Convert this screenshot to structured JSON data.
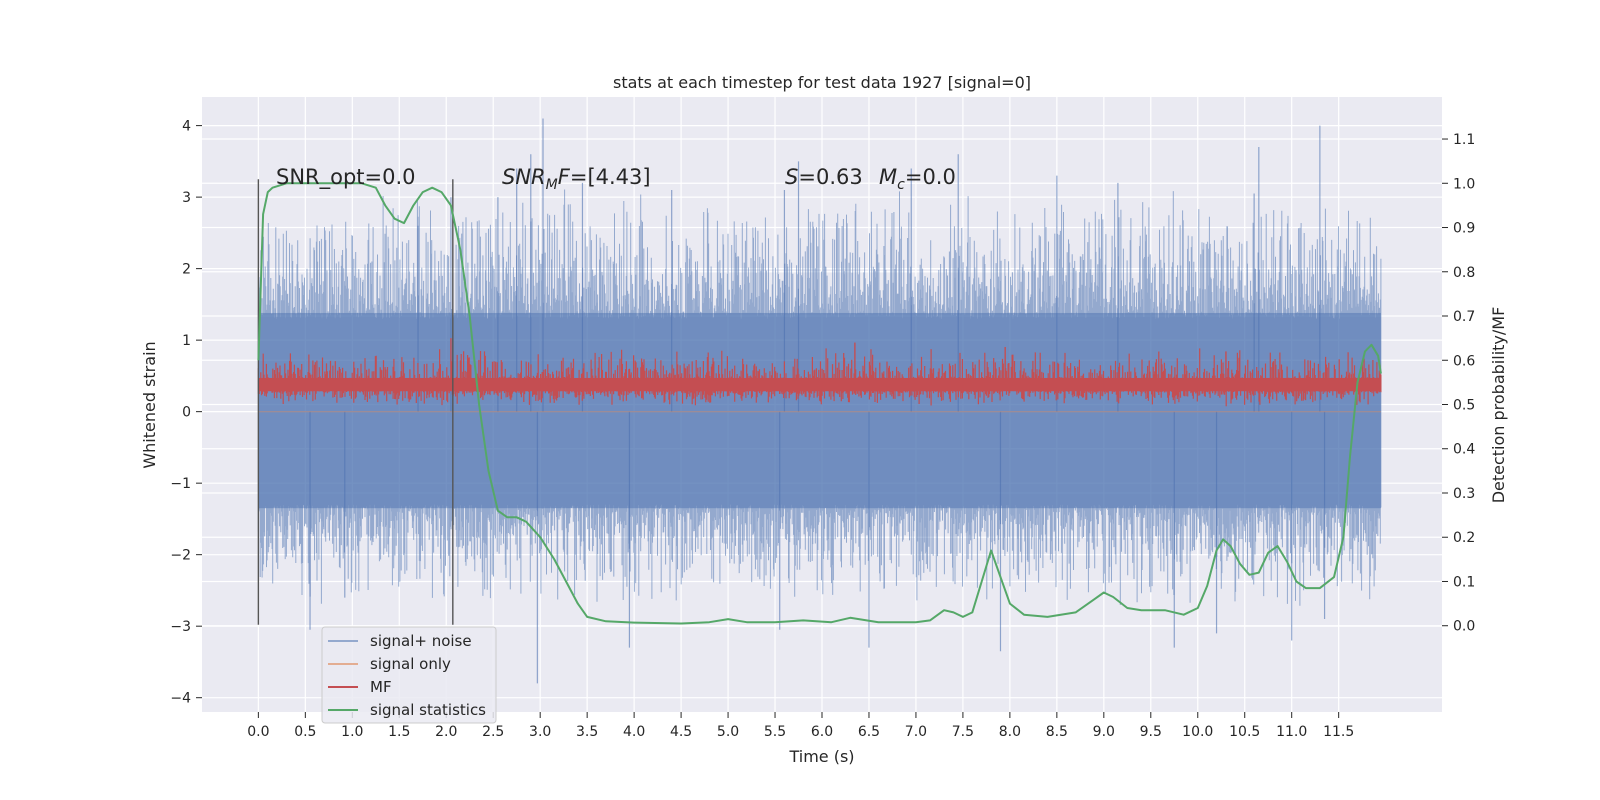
{
  "chart_data": {
    "type": "line",
    "title": "stats at each timestep for test data 1927 [signal=0]",
    "xlabel": "Time (s)",
    "ylabel": "Whitened strain",
    "y2label": "Detection probability/MF",
    "xlim": [
      -0.6,
      12.6
    ],
    "ylim": [
      -4.2,
      4.4
    ],
    "y2lim": [
      -0.195,
      1.195
    ],
    "grid": true,
    "x_ticks": [
      0.0,
      0.5,
      1.0,
      1.5,
      2.0,
      2.5,
      3.0,
      3.5,
      4.0,
      4.5,
      5.0,
      5.5,
      6.0,
      6.5,
      7.0,
      7.5,
      8.0,
      8.5,
      9.0,
      9.5,
      10.0,
      10.5,
      11.0,
      11.5
    ],
    "x_tick_labels": [
      "0.0",
      "0.5",
      "1.0",
      "1.5",
      "2.0",
      "2.5",
      "3.0",
      "3.5",
      "4.0",
      "4.5",
      "5.0",
      "5.5",
      "6.0",
      "6.5",
      "7.0",
      "7.5",
      "8.0",
      "8.5",
      "9.0",
      "9.5",
      "10.0",
      "10.5",
      "11.0",
      "11.5"
    ],
    "y_ticks": [
      -4,
      -3,
      -2,
      -1,
      0,
      1,
      2,
      3,
      4
    ],
    "y_tick_labels": [
      "−4",
      "−3",
      "−2",
      "−1",
      "0",
      "1",
      "2",
      "3",
      "4"
    ],
    "y2_ticks": [
      0.0,
      0.1,
      0.2,
      0.3,
      0.4,
      0.5,
      0.6,
      0.7,
      0.8,
      0.9,
      1.0,
      1.1
    ],
    "y2_tick_labels": [
      "0.0",
      "0.1",
      "0.2",
      "0.3",
      "0.4",
      "0.5",
      "0.6",
      "0.7",
      "0.8",
      "0.9",
      "1.0",
      "1.1"
    ],
    "annotations": {
      "snr_opt": "SNR_opt=0.0",
      "snr_mf": "[4.43]",
      "stat_s": "0.63",
      "mc": "0.0"
    },
    "window_markers": [
      0.0,
      2.07
    ],
    "legend_position": "lower left",
    "series": [
      {
        "name": "signal+ noise",
        "color": "#4c72b0",
        "style": "noise band",
        "x_range": [
          0.0,
          11.95
        ],
        "approx_range": [
          -3.8,
          4.1
        ],
        "spike_points": [
          [
            0.55,
            -3.05
          ],
          [
            0.92,
            -2.6
          ],
          [
            1.7,
            2.6
          ],
          [
            2.05,
            3.0
          ],
          [
            2.55,
            3.0
          ],
          [
            2.75,
            3.4
          ],
          [
            2.9,
            3.6
          ],
          [
            2.97,
            -3.8
          ],
          [
            3.03,
            4.1
          ],
          [
            3.45,
            3.2
          ],
          [
            3.95,
            -3.3
          ],
          [
            4.4,
            3.1
          ],
          [
            5.55,
            -3.05
          ],
          [
            5.6,
            3.1
          ],
          [
            5.75,
            3.5
          ],
          [
            6.5,
            -3.3
          ],
          [
            6.95,
            3.4
          ],
          [
            7.45,
            3.6
          ],
          [
            7.9,
            -3.35
          ],
          [
            8.5,
            3.3
          ],
          [
            9.15,
            3.2
          ],
          [
            9.75,
            -3.3
          ],
          [
            10.2,
            -3.1
          ],
          [
            10.6,
            3.05
          ],
          [
            10.65,
            3.7
          ],
          [
            11.0,
            -3.2
          ],
          [
            11.3,
            4.0
          ],
          [
            11.35,
            -2.9
          ]
        ]
      },
      {
        "name": "signal only",
        "color": "#dd8452",
        "points": [
          [
            0.0,
            0.0
          ],
          [
            11.95,
            0.0
          ]
        ]
      },
      {
        "name": "MF",
        "color": "#c44e52",
        "axis": "right",
        "style": "noise band",
        "x_range": [
          0.0,
          11.95
        ],
        "approx_range": [
          0.5,
          0.64
        ],
        "spike_points": [
          [
            2.05,
            0.65
          ],
          [
            6.35,
            0.64
          ],
          [
            7.95,
            0.63
          ],
          [
            10.3,
            0.62
          ]
        ]
      },
      {
        "name": "signal statistics",
        "color": "#55a868",
        "axis": "right",
        "points": [
          [
            0.0,
            0.6
          ],
          [
            0.05,
            0.93
          ],
          [
            0.1,
            0.98
          ],
          [
            0.15,
            0.99
          ],
          [
            0.3,
            1.0
          ],
          [
            0.8,
            1.0
          ],
          [
            1.1,
            1.0
          ],
          [
            1.25,
            0.99
          ],
          [
            1.35,
            0.95
          ],
          [
            1.45,
            0.92
          ],
          [
            1.55,
            0.91
          ],
          [
            1.65,
            0.95
          ],
          [
            1.75,
            0.98
          ],
          [
            1.85,
            0.99
          ],
          [
            1.95,
            0.98
          ],
          [
            2.05,
            0.95
          ],
          [
            2.15,
            0.85
          ],
          [
            2.25,
            0.7
          ],
          [
            2.35,
            0.5
          ],
          [
            2.45,
            0.35
          ],
          [
            2.55,
            0.26
          ],
          [
            2.65,
            0.245
          ],
          [
            2.75,
            0.245
          ],
          [
            2.85,
            0.235
          ],
          [
            3.0,
            0.2
          ],
          [
            3.15,
            0.15
          ],
          [
            3.3,
            0.09
          ],
          [
            3.4,
            0.05
          ],
          [
            3.5,
            0.02
          ],
          [
            3.7,
            0.01
          ],
          [
            4.0,
            0.007
          ],
          [
            4.5,
            0.005
          ],
          [
            4.8,
            0.008
          ],
          [
            5.0,
            0.015
          ],
          [
            5.2,
            0.008
          ],
          [
            5.5,
            0.008
          ],
          [
            5.8,
            0.012
          ],
          [
            6.1,
            0.008
          ],
          [
            6.3,
            0.018
          ],
          [
            6.6,
            0.008
          ],
          [
            7.0,
            0.008
          ],
          [
            7.15,
            0.012
          ],
          [
            7.3,
            0.035
          ],
          [
            7.4,
            0.03
          ],
          [
            7.5,
            0.02
          ],
          [
            7.6,
            0.03
          ],
          [
            7.7,
            0.1
          ],
          [
            7.8,
            0.17
          ],
          [
            7.9,
            0.11
          ],
          [
            8.0,
            0.05
          ],
          [
            8.15,
            0.025
          ],
          [
            8.4,
            0.02
          ],
          [
            8.7,
            0.03
          ],
          [
            8.9,
            0.06
          ],
          [
            9.0,
            0.075
          ],
          [
            9.1,
            0.065
          ],
          [
            9.25,
            0.04
          ],
          [
            9.4,
            0.035
          ],
          [
            9.5,
            0.035
          ],
          [
            9.65,
            0.035
          ],
          [
            9.85,
            0.025
          ],
          [
            10.0,
            0.04
          ],
          [
            10.1,
            0.09
          ],
          [
            10.2,
            0.17
          ],
          [
            10.27,
            0.195
          ],
          [
            10.35,
            0.18
          ],
          [
            10.45,
            0.14
          ],
          [
            10.55,
            0.115
          ],
          [
            10.65,
            0.12
          ],
          [
            10.75,
            0.165
          ],
          [
            10.85,
            0.18
          ],
          [
            10.95,
            0.145
          ],
          [
            11.05,
            0.1
          ],
          [
            11.15,
            0.085
          ],
          [
            11.3,
            0.085
          ],
          [
            11.45,
            0.11
          ],
          [
            11.55,
            0.2
          ],
          [
            11.62,
            0.38
          ],
          [
            11.7,
            0.55
          ],
          [
            11.78,
            0.62
          ],
          [
            11.85,
            0.635
          ],
          [
            11.92,
            0.61
          ],
          [
            11.95,
            0.57
          ]
        ]
      }
    ]
  }
}
